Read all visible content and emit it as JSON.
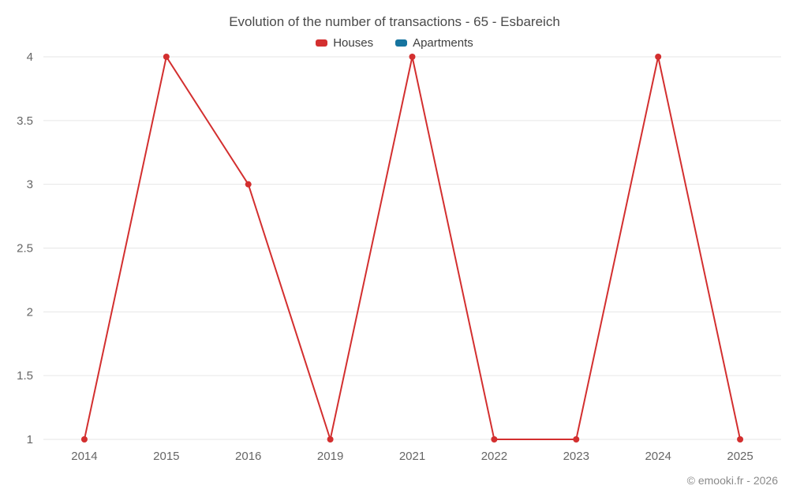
{
  "chart_data": {
    "type": "line",
    "title": "Evolution of the number of transactions - 65 - Esbareich",
    "categories": [
      "2014",
      "2015",
      "2016",
      "2019",
      "2021",
      "2022",
      "2023",
      "2024",
      "2025"
    ],
    "series": [
      {
        "name": "Houses",
        "color": "#d32f2f",
        "values": [
          1,
          4,
          3,
          1,
          4,
          1,
          1,
          4,
          1
        ]
      },
      {
        "name": "Apartments",
        "color": "#16749f",
        "values": []
      }
    ],
    "yticks": [
      1,
      1.5,
      2,
      2.5,
      3,
      3.5,
      4
    ],
    "ylim": [
      1,
      4
    ],
    "grid": true,
    "grid_color": "#e6e6e6",
    "tick_color": "#666666",
    "legend_position": "top",
    "xlabel": "",
    "ylabel": ""
  },
  "footer": {
    "credit": "© emooki.fr - 2026"
  }
}
